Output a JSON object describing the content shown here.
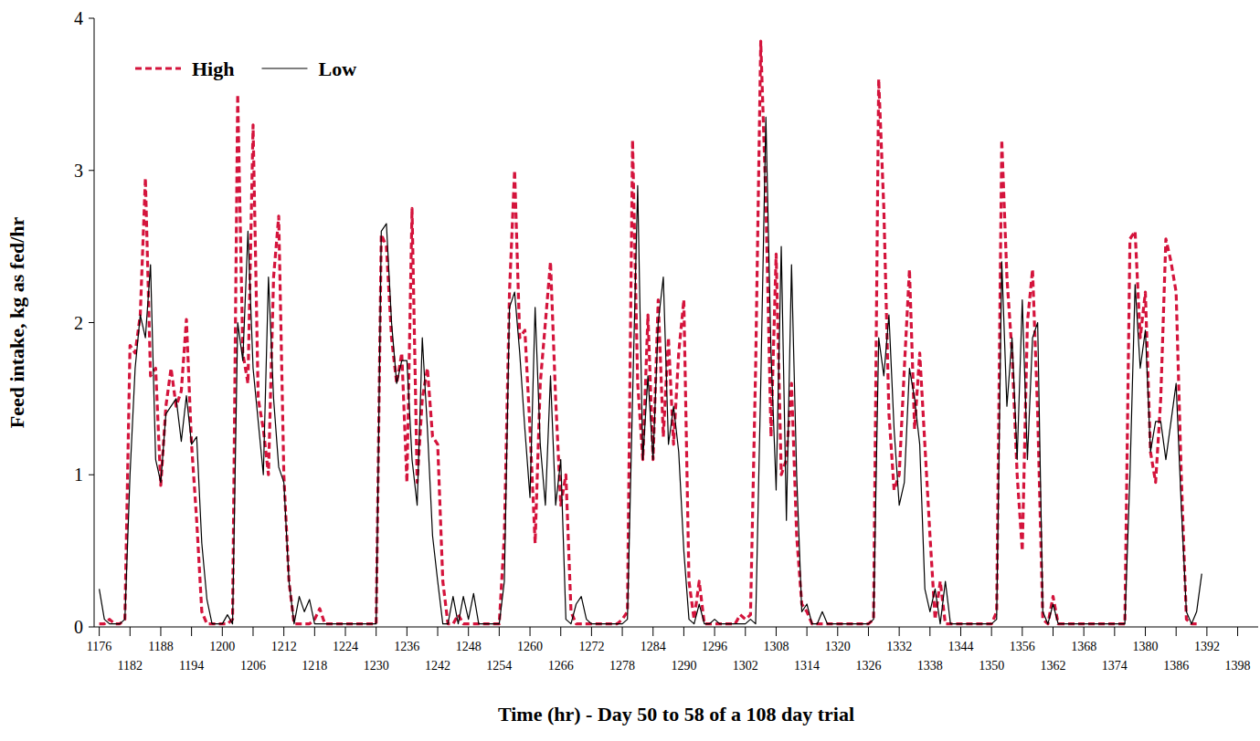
{
  "chart_data": {
    "type": "line",
    "x_label": "Time (hr) - Day 50 to 58 of a 108 day trial",
    "y_label": "Feed intake, kg as fed/hr",
    "xlim": [
      1175,
      1402
    ],
    "ylim": [
      0,
      4
    ],
    "xticks": [
      1176,
      1182,
      1188,
      1194,
      1200,
      1206,
      1212,
      1218,
      1224,
      1230,
      1236,
      1242,
      1248,
      1254,
      1260,
      1266,
      1272,
      1278,
      1284,
      1290,
      1296,
      1302,
      1308,
      1314,
      1320,
      1326,
      1332,
      1338,
      1344,
      1350,
      1356,
      1362,
      1368,
      1374,
      1380,
      1386,
      1392,
      1398
    ],
    "yticks": [
      0,
      1,
      2,
      3,
      4
    ],
    "legend": "top-left",
    "grid": false,
    "x": [
      1176,
      1177,
      1178,
      1179,
      1180,
      1181,
      1182,
      1183,
      1184,
      1185,
      1186,
      1187,
      1188,
      1189,
      1190,
      1191,
      1192,
      1193,
      1194,
      1195,
      1196,
      1197,
      1198,
      1199,
      1200,
      1201,
      1202,
      1203,
      1204,
      1205,
      1206,
      1207,
      1208,
      1209,
      1210,
      1211,
      1212,
      1213,
      1214,
      1215,
      1216,
      1217,
      1218,
      1219,
      1220,
      1221,
      1222,
      1223,
      1224,
      1225,
      1226,
      1227,
      1228,
      1229,
      1230,
      1231,
      1232,
      1233,
      1234,
      1235,
      1236,
      1237,
      1238,
      1239,
      1240,
      1241,
      1242,
      1243,
      1244,
      1245,
      1246,
      1247,
      1248,
      1249,
      1250,
      1251,
      1252,
      1253,
      1254,
      1255,
      1256,
      1257,
      1258,
      1259,
      1260,
      1261,
      1262,
      1263,
      1264,
      1265,
      1266,
      1267,
      1268,
      1269,
      1270,
      1271,
      1272,
      1273,
      1274,
      1275,
      1276,
      1277,
      1278,
      1279,
      1280,
      1281,
      1282,
      1283,
      1284,
      1285,
      1286,
      1287,
      1288,
      1289,
      1290,
      1291,
      1292,
      1293,
      1294,
      1295,
      1296,
      1297,
      1298,
      1299,
      1300,
      1301,
      1302,
      1303,
      1304,
      1305,
      1306,
      1307,
      1308,
      1309,
      1310,
      1311,
      1312,
      1313,
      1314,
      1315,
      1316,
      1317,
      1318,
      1319,
      1320,
      1321,
      1322,
      1323,
      1324,
      1325,
      1326,
      1327,
      1328,
      1329,
      1330,
      1331,
      1332,
      1333,
      1334,
      1335,
      1336,
      1337,
      1338,
      1339,
      1340,
      1341,
      1342,
      1343,
      1344,
      1345,
      1346,
      1347,
      1348,
      1349,
      1350,
      1351,
      1352,
      1353,
      1354,
      1355,
      1356,
      1357,
      1358,
      1359,
      1360,
      1361,
      1362,
      1363,
      1364,
      1365,
      1366,
      1367,
      1368,
      1369,
      1370,
      1371,
      1372,
      1373,
      1374,
      1375,
      1376,
      1377,
      1378,
      1379,
      1380,
      1381,
      1382,
      1383,
      1384,
      1385,
      1386,
      1387,
      1388,
      1389,
      1390,
      1391
    ],
    "series": [
      {
        "name": "High",
        "color": "#d4143c",
        "line_style": "dashed",
        "values": [
          0.02,
          0.02,
          0.05,
          0.02,
          0.02,
          0.05,
          1.85,
          1.8,
          2.05,
          2.95,
          1.65,
          1.7,
          0.93,
          1.45,
          1.7,
          1.45,
          1.55,
          2.02,
          1.2,
          0.7,
          0.1,
          0.02,
          0.02,
          0.02,
          0.02,
          0.02,
          0.05,
          3.5,
          1.8,
          1.6,
          3.3,
          1.5,
          1.3,
          1.0,
          2.3,
          2.7,
          1.0,
          0.3,
          0.02,
          0.02,
          0.02,
          0.02,
          0.05,
          0.12,
          0.02,
          0.02,
          0.02,
          0.02,
          0.02,
          0.02,
          0.02,
          0.02,
          0.02,
          0.02,
          0.02,
          2.58,
          2.5,
          1.9,
          1.6,
          1.8,
          0.95,
          2.75,
          0.95,
          1.5,
          1.7,
          1.25,
          1.2,
          0.3,
          0.02,
          0.02,
          0.08,
          0.02,
          0.02,
          0.02,
          0.02,
          0.02,
          0.02,
          0.02,
          0.02,
          0.6,
          2.2,
          3.0,
          1.9,
          1.95,
          1.3,
          0.55,
          1.6,
          2.0,
          2.4,
          1.5,
          0.8,
          1.0,
          0.1,
          0.02,
          0.02,
          0.02,
          0.02,
          0.02,
          0.02,
          0.02,
          0.02,
          0.02,
          0.05,
          0.1,
          3.2,
          1.6,
          1.1,
          2.05,
          1.1,
          2.15,
          1.25,
          1.9,
          1.2,
          1.8,
          2.15,
          0.3,
          0.05,
          0.3,
          0.02,
          0.02,
          0.02,
          0.02,
          0.02,
          0.02,
          0.02,
          0.08,
          0.05,
          0.08,
          1.7,
          3.85,
          2.8,
          1.25,
          2.45,
          1.0,
          1.1,
          1.6,
          0.6,
          0.15,
          0.1,
          0.02,
          0.02,
          0.02,
          0.02,
          0.02,
          0.02,
          0.02,
          0.02,
          0.02,
          0.02,
          0.02,
          0.02,
          0.05,
          3.6,
          2.75,
          1.4,
          0.9,
          1.0,
          1.7,
          2.35,
          1.3,
          1.8,
          1.2,
          0.6,
          0.05,
          0.3,
          0.02,
          0.02,
          0.02,
          0.02,
          0.02,
          0.02,
          0.02,
          0.02,
          0.02,
          0.02,
          0.1,
          3.2,
          2.3,
          1.8,
          1.0,
          0.5,
          2.0,
          2.35,
          1.4,
          0.05,
          0.02,
          0.2,
          0.02,
          0.02,
          0.02,
          0.02,
          0.02,
          0.02,
          0.02,
          0.02,
          0.02,
          0.02,
          0.02,
          0.02,
          0.02,
          0.02,
          2.55,
          2.6,
          1.9,
          2.2,
          1.15,
          0.95,
          1.5,
          2.55,
          2.4,
          2.2,
          1.0,
          0.05,
          0.02,
          0.02,
          null
        ]
      },
      {
        "name": "Low",
        "color": "#000000",
        "line_style": "solid",
        "values": [
          0.25,
          0.05,
          0.02,
          0.02,
          0.02,
          0.05,
          1.0,
          1.7,
          2.05,
          1.9,
          2.38,
          1.1,
          0.95,
          1.4,
          1.45,
          1.5,
          1.22,
          1.52,
          1.2,
          1.25,
          0.55,
          0.18,
          0.02,
          0.02,
          0.02,
          0.08,
          0.02,
          2.0,
          1.75,
          2.6,
          1.7,
          1.35,
          1.0,
          2.3,
          1.5,
          1.05,
          0.95,
          0.3,
          0.02,
          0.2,
          0.1,
          0.18,
          0.02,
          0.02,
          0.02,
          0.02,
          0.02,
          0.02,
          0.02,
          0.02,
          0.02,
          0.02,
          0.02,
          0.02,
          0.02,
          2.6,
          2.65,
          2.0,
          1.6,
          1.75,
          1.75,
          1.1,
          0.8,
          1.9,
          1.3,
          0.6,
          0.3,
          0.02,
          0.02,
          0.2,
          0.02,
          0.2,
          0.05,
          0.22,
          0.02,
          0.02,
          0.02,
          0.02,
          0.02,
          0.3,
          2.1,
          2.2,
          1.8,
          1.3,
          0.85,
          2.1,
          1.2,
          0.8,
          1.65,
          0.8,
          1.1,
          0.05,
          0.02,
          0.15,
          0.2,
          0.05,
          0.02,
          0.02,
          0.02,
          0.02,
          0.02,
          0.02,
          0.02,
          0.05,
          1.5,
          2.9,
          1.1,
          1.65,
          1.1,
          2.0,
          2.3,
          1.2,
          1.45,
          1.15,
          0.5,
          0.05,
          0.02,
          0.15,
          0.02,
          0.02,
          0.05,
          0.02,
          0.02,
          0.02,
          0.02,
          0.02,
          0.02,
          0.05,
          0.02,
          1.6,
          3.35,
          1.8,
          0.9,
          2.5,
          0.7,
          2.38,
          1.0,
          0.1,
          0.15,
          0.02,
          0.02,
          0.1,
          0.02,
          0.02,
          0.02,
          0.02,
          0.02,
          0.02,
          0.02,
          0.02,
          0.02,
          0.05,
          1.9,
          1.65,
          2.05,
          1.3,
          0.8,
          0.95,
          1.7,
          1.5,
          1.2,
          0.25,
          0.1,
          0.25,
          0.02,
          0.3,
          0.02,
          0.02,
          0.02,
          0.02,
          0.02,
          0.02,
          0.02,
          0.02,
          0.02,
          0.05,
          2.4,
          1.45,
          1.9,
          1.1,
          2.15,
          1.1,
          1.9,
          2.0,
          0.1,
          0.02,
          0.15,
          0.02,
          0.02,
          0.02,
          0.02,
          0.02,
          0.02,
          0.02,
          0.02,
          0.02,
          0.02,
          0.02,
          0.02,
          0.02,
          0.02,
          1.0,
          2.25,
          1.7,
          1.95,
          1.15,
          1.35,
          1.35,
          1.1,
          1.35,
          1.6,
          0.8,
          0.1,
          0.02,
          0.1,
          0.35
        ]
      }
    ]
  }
}
